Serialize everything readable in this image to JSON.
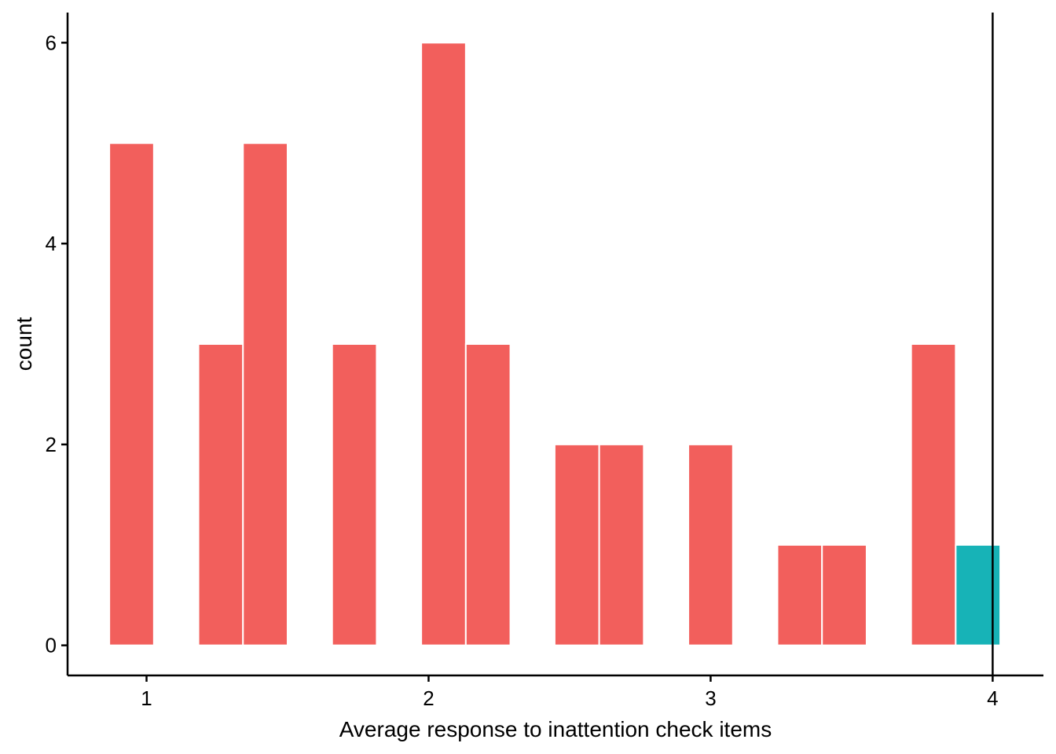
{
  "chart_data": {
    "type": "bar",
    "title": "",
    "xlabel": "Average response to inattention check items",
    "ylabel": "count",
    "xlim": [
      0.72,
      4.18
    ],
    "ylim": [
      -0.3,
      6.3
    ],
    "binwidth": 0.158,
    "x_ticks": [
      1,
      2,
      3,
      4
    ],
    "y_ticks": [
      0,
      2,
      4,
      6
    ],
    "grid": false,
    "legend": "none",
    "reference_line": {
      "x": 4,
      "color": "#000000"
    },
    "series": [
      {
        "color": "#F25F5C",
        "bins": [
          {
            "x": 0.947,
            "count": 5
          },
          {
            "x": 1.263,
            "count": 3
          },
          {
            "x": 1.421,
            "count": 5
          },
          {
            "x": 1.737,
            "count": 3
          },
          {
            "x": 2.053,
            "count": 6
          },
          {
            "x": 2.211,
            "count": 3
          },
          {
            "x": 2.526,
            "count": 2
          },
          {
            "x": 2.684,
            "count": 2
          },
          {
            "x": 3.0,
            "count": 2
          },
          {
            "x": 3.316,
            "count": 1
          },
          {
            "x": 3.474,
            "count": 1
          },
          {
            "x": 3.79,
            "count": 3
          }
        ]
      },
      {
        "color": "#17B3B7",
        "bins": [
          {
            "x": 3.948,
            "count": 1
          }
        ]
      }
    ]
  }
}
